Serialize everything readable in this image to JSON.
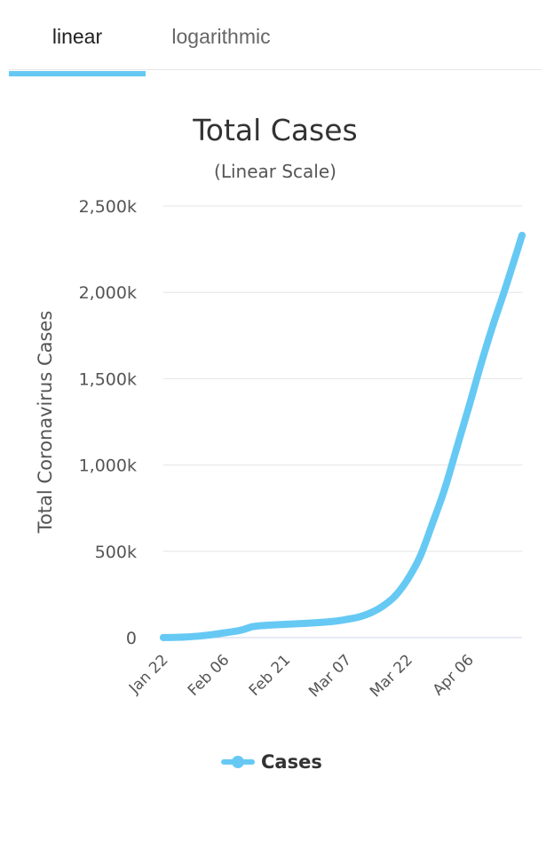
{
  "tabs": {
    "linear_label": "linear",
    "log_label": "logarithmic",
    "active": "linear"
  },
  "colors": {
    "series": "#66c9f4",
    "grid": "#e6e6e6"
  },
  "chart_data": {
    "type": "line",
    "title": "Total Cases",
    "subtitle": "(Linear Scale)",
    "ylabel": "Total Coronavirus Cases",
    "ylim": [
      0,
      2500
    ],
    "y_unit": "k",
    "y_ticks": [
      0,
      500,
      1000,
      1500,
      2000,
      2500
    ],
    "y_tick_labels": [
      "0",
      "500k",
      "1,000k",
      "1,500k",
      "2,000k",
      "2,500k"
    ],
    "x_tick_labels": [
      "Jan 22",
      "Feb 06",
      "Feb 21",
      "Mar 07",
      "Mar 22",
      "Apr 06"
    ],
    "x_tick_dates": [
      "2020-01-22",
      "2020-02-06",
      "2020-02-21",
      "2020-03-07",
      "2020-03-22",
      "2020-04-06"
    ],
    "x_range": [
      "2020-01-22",
      "2020-04-19"
    ],
    "grid": true,
    "legend_position": "bottom",
    "series": [
      {
        "name": "Cases",
        "x": [
          "2020-01-22",
          "2020-01-27",
          "2020-02-01",
          "2020-02-06",
          "2020-02-10",
          "2020-02-13",
          "2020-02-16",
          "2020-02-21",
          "2020-02-26",
          "2020-03-01",
          "2020-03-04",
          "2020-03-07",
          "2020-03-10",
          "2020-03-13",
          "2020-03-16",
          "2020-03-19",
          "2020-03-22",
          "2020-03-25",
          "2020-03-28",
          "2020-03-31",
          "2020-04-03",
          "2020-04-06",
          "2020-04-09",
          "2020-04-12",
          "2020-04-15",
          "2020-04-19"
        ],
        "values": [
          0.6,
          3,
          12,
          28,
          43,
          64,
          71,
          77,
          83,
          89,
          95,
          106,
          120,
          145,
          185,
          245,
          340,
          470,
          660,
          860,
          1100,
          1340,
          1590,
          1820,
          2030,
          2330
        ]
      }
    ]
  }
}
